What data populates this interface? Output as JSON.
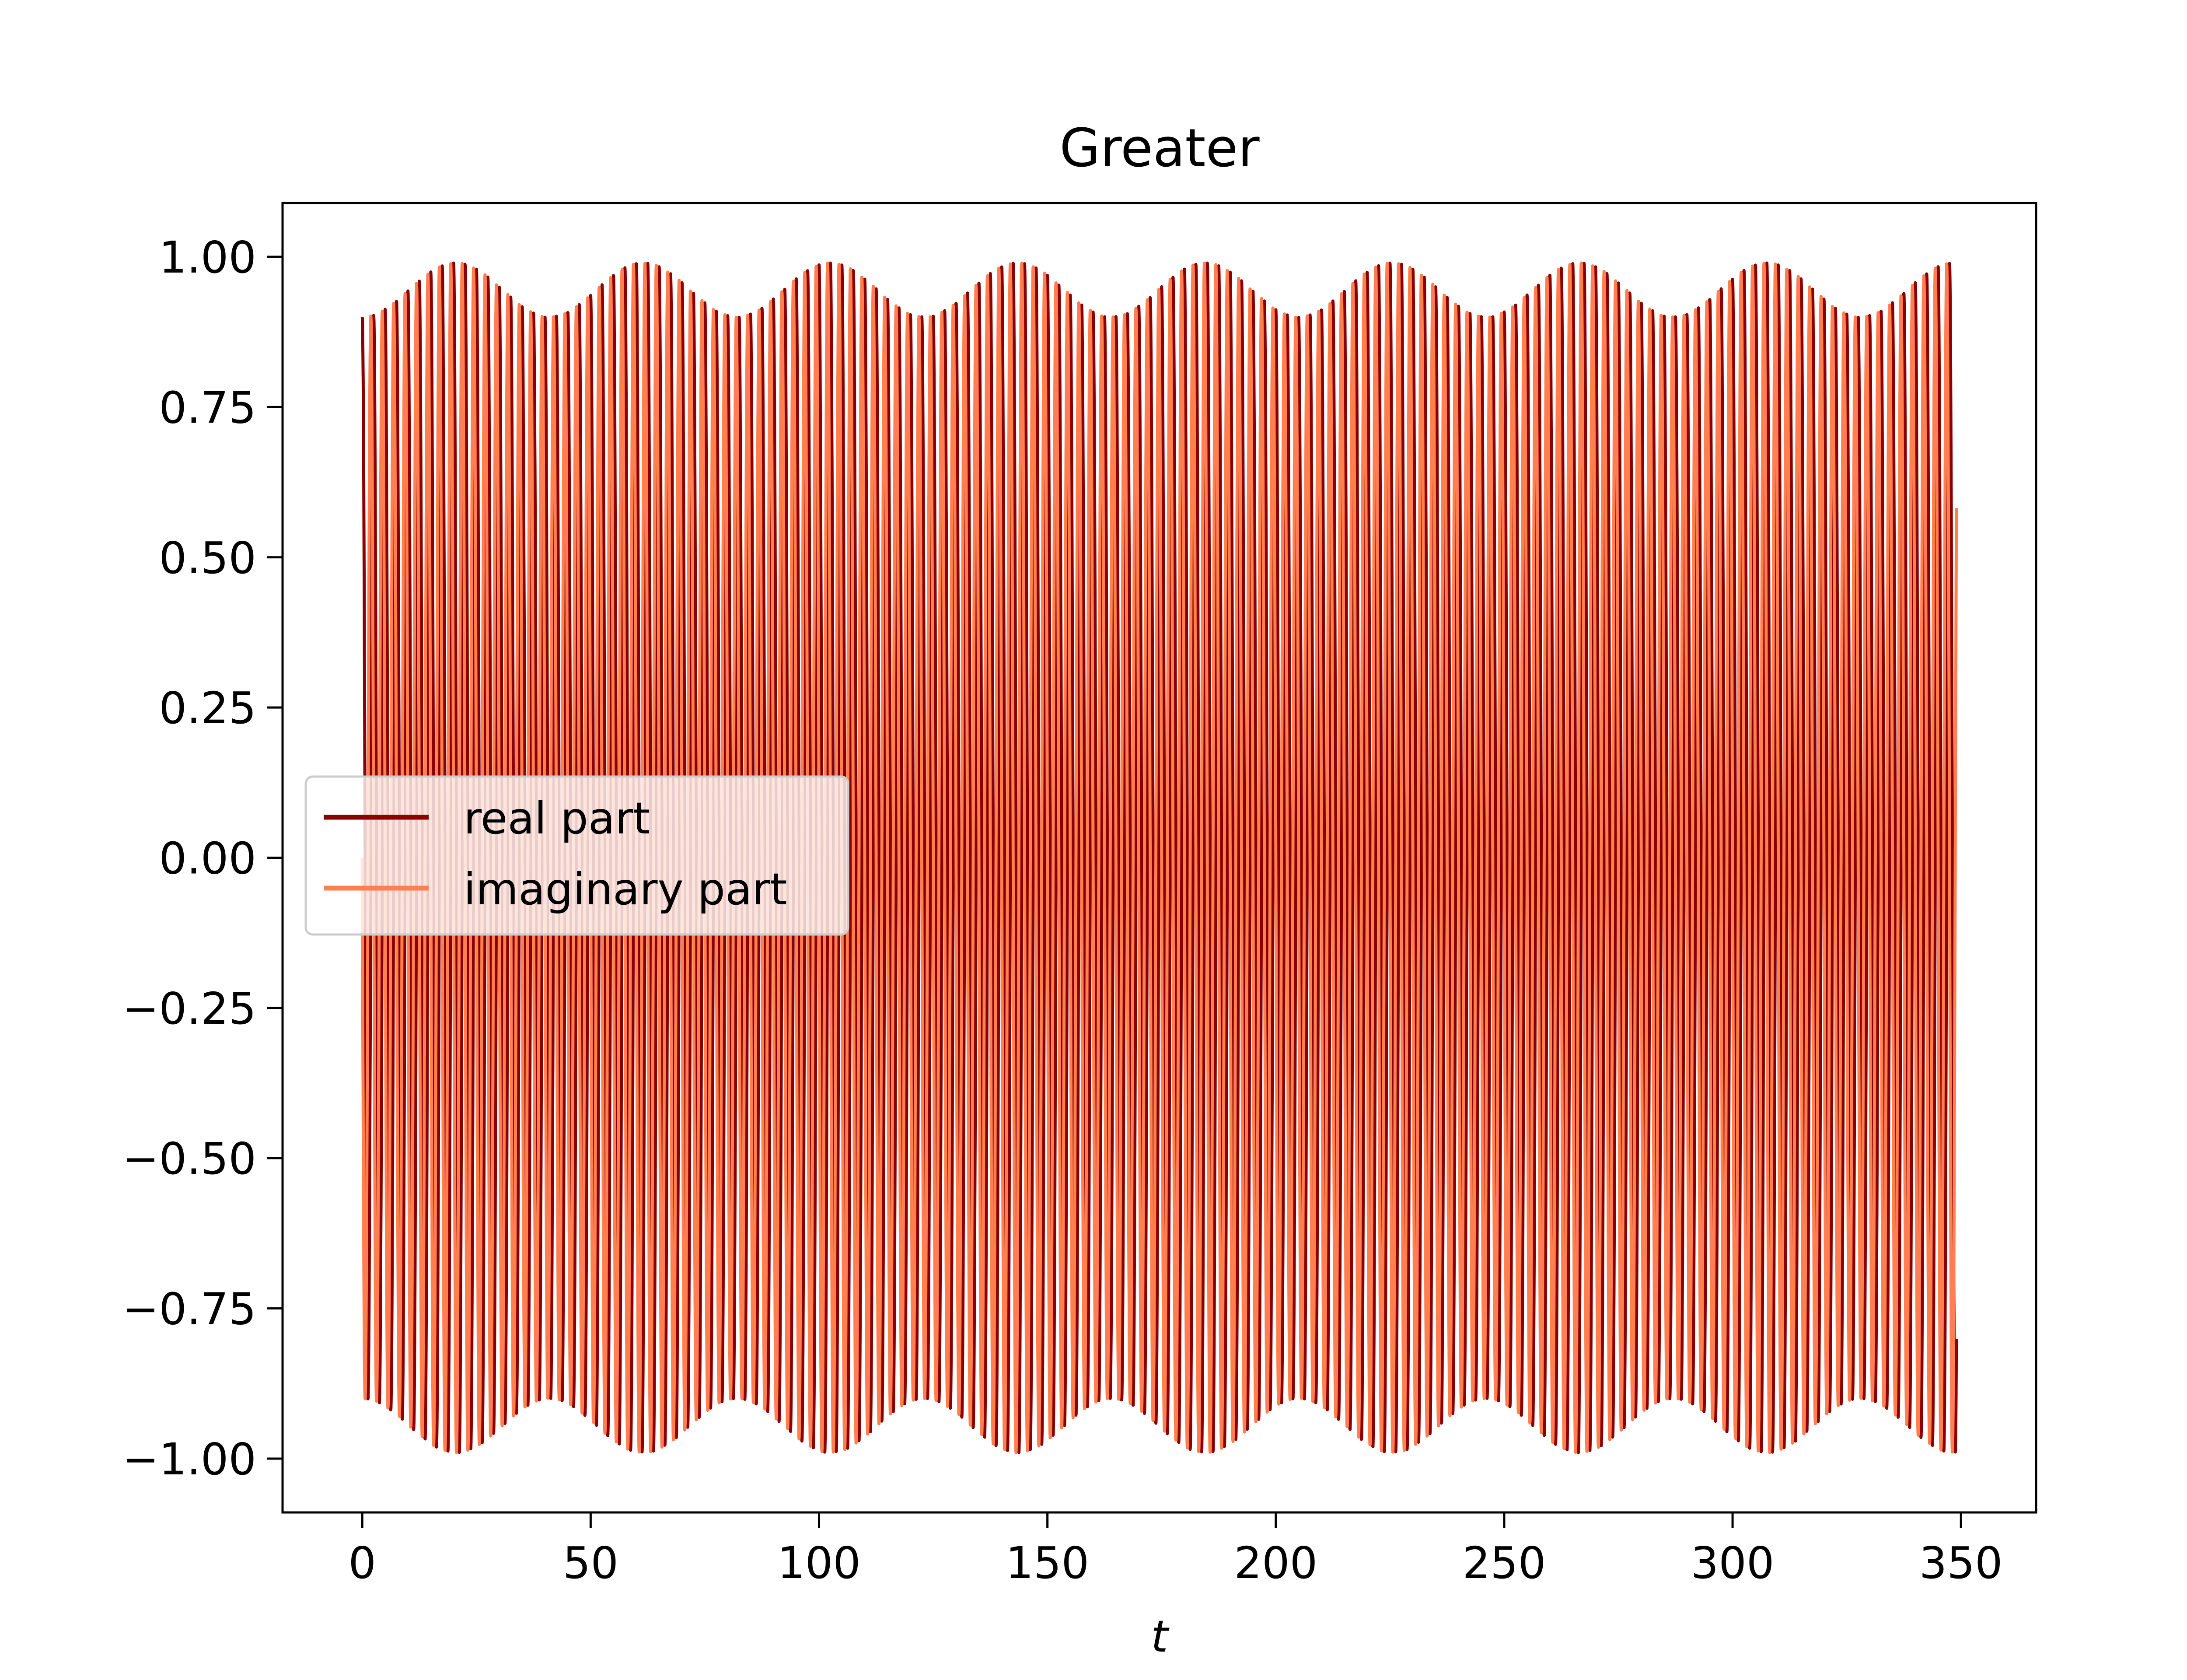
{
  "chart_data": {
    "type": "line",
    "title": "Greater",
    "xlabel": "t",
    "ylabel": "",
    "xlim": [
      -17.45,
      366.45
    ],
    "ylim": [
      -1.0896,
      1.0896
    ],
    "xticks": [
      0,
      50,
      100,
      150,
      200,
      250,
      300,
      350
    ],
    "xtick_labels": [
      "0",
      "50",
      "100",
      "150",
      "200",
      "250",
      "300",
      "350"
    ],
    "yticks": [
      1.0,
      0.75,
      0.5,
      0.25,
      0.0,
      -0.25,
      -0.5,
      -0.75,
      -1.0
    ],
    "ytick_labels": [
      "1.00",
      "0.75",
      "0.50",
      "0.25",
      "0.00",
      "−0.25",
      "−0.50",
      "−0.75",
      "−1.00"
    ],
    "grid": false,
    "legend_position": "center-left",
    "signal": {
      "t_start": 0,
      "t_end": 349,
      "carrier_period": 2.5,
      "envelope_period": 41,
      "min_amplitude": 0.9,
      "max_amplitude": 0.99
    },
    "series": [
      {
        "name": "real part",
        "color": "#8b0000",
        "function": "cos"
      },
      {
        "name": "imaginary part",
        "color": "#ff7f50",
        "function": "sin"
      }
    ]
  }
}
